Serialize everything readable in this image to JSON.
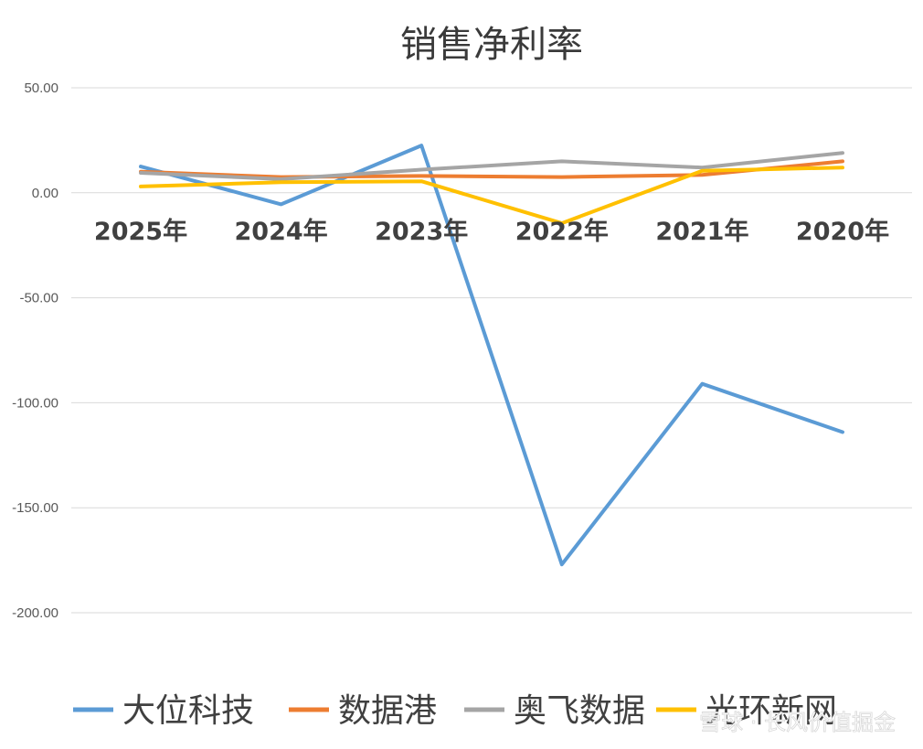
{
  "chart_data": {
    "type": "line",
    "title": "销售净利率",
    "categories": [
      "2025年",
      "2024年",
      "2023年",
      "2022年",
      "2021年",
      "2020年"
    ],
    "ylim": [
      -200,
      50
    ],
    "yticks": [
      50,
      0,
      -50,
      -100,
      -150,
      -200
    ],
    "ytick_labels": [
      "50.00",
      "0.00",
      "-50.00",
      "-100.00",
      "-150.00",
      "-200.00"
    ],
    "grid": true,
    "legend_position": "bottom",
    "series": [
      {
        "name": "大位科技",
        "color": "#5b9bd5",
        "values": [
          12.5,
          -5.5,
          22.5,
          -177.0,
          -91.0,
          -114.0
        ]
      },
      {
        "name": "数据港",
        "color": "#ed7d31",
        "values": [
          10.0,
          7.5,
          8.0,
          7.5,
          8.5,
          15.0
        ]
      },
      {
        "name": "奥飞数据",
        "color": "#a5a5a5",
        "values": [
          9.5,
          6.5,
          11.0,
          15.0,
          12.0,
          19.0
        ]
      },
      {
        "name": "光环新网",
        "color": "#ffc000",
        "values": [
          3.0,
          5.0,
          5.5,
          -14.5,
          10.5,
          12.0
        ]
      }
    ]
  },
  "watermark": "雪球 · 长风价值掘金"
}
